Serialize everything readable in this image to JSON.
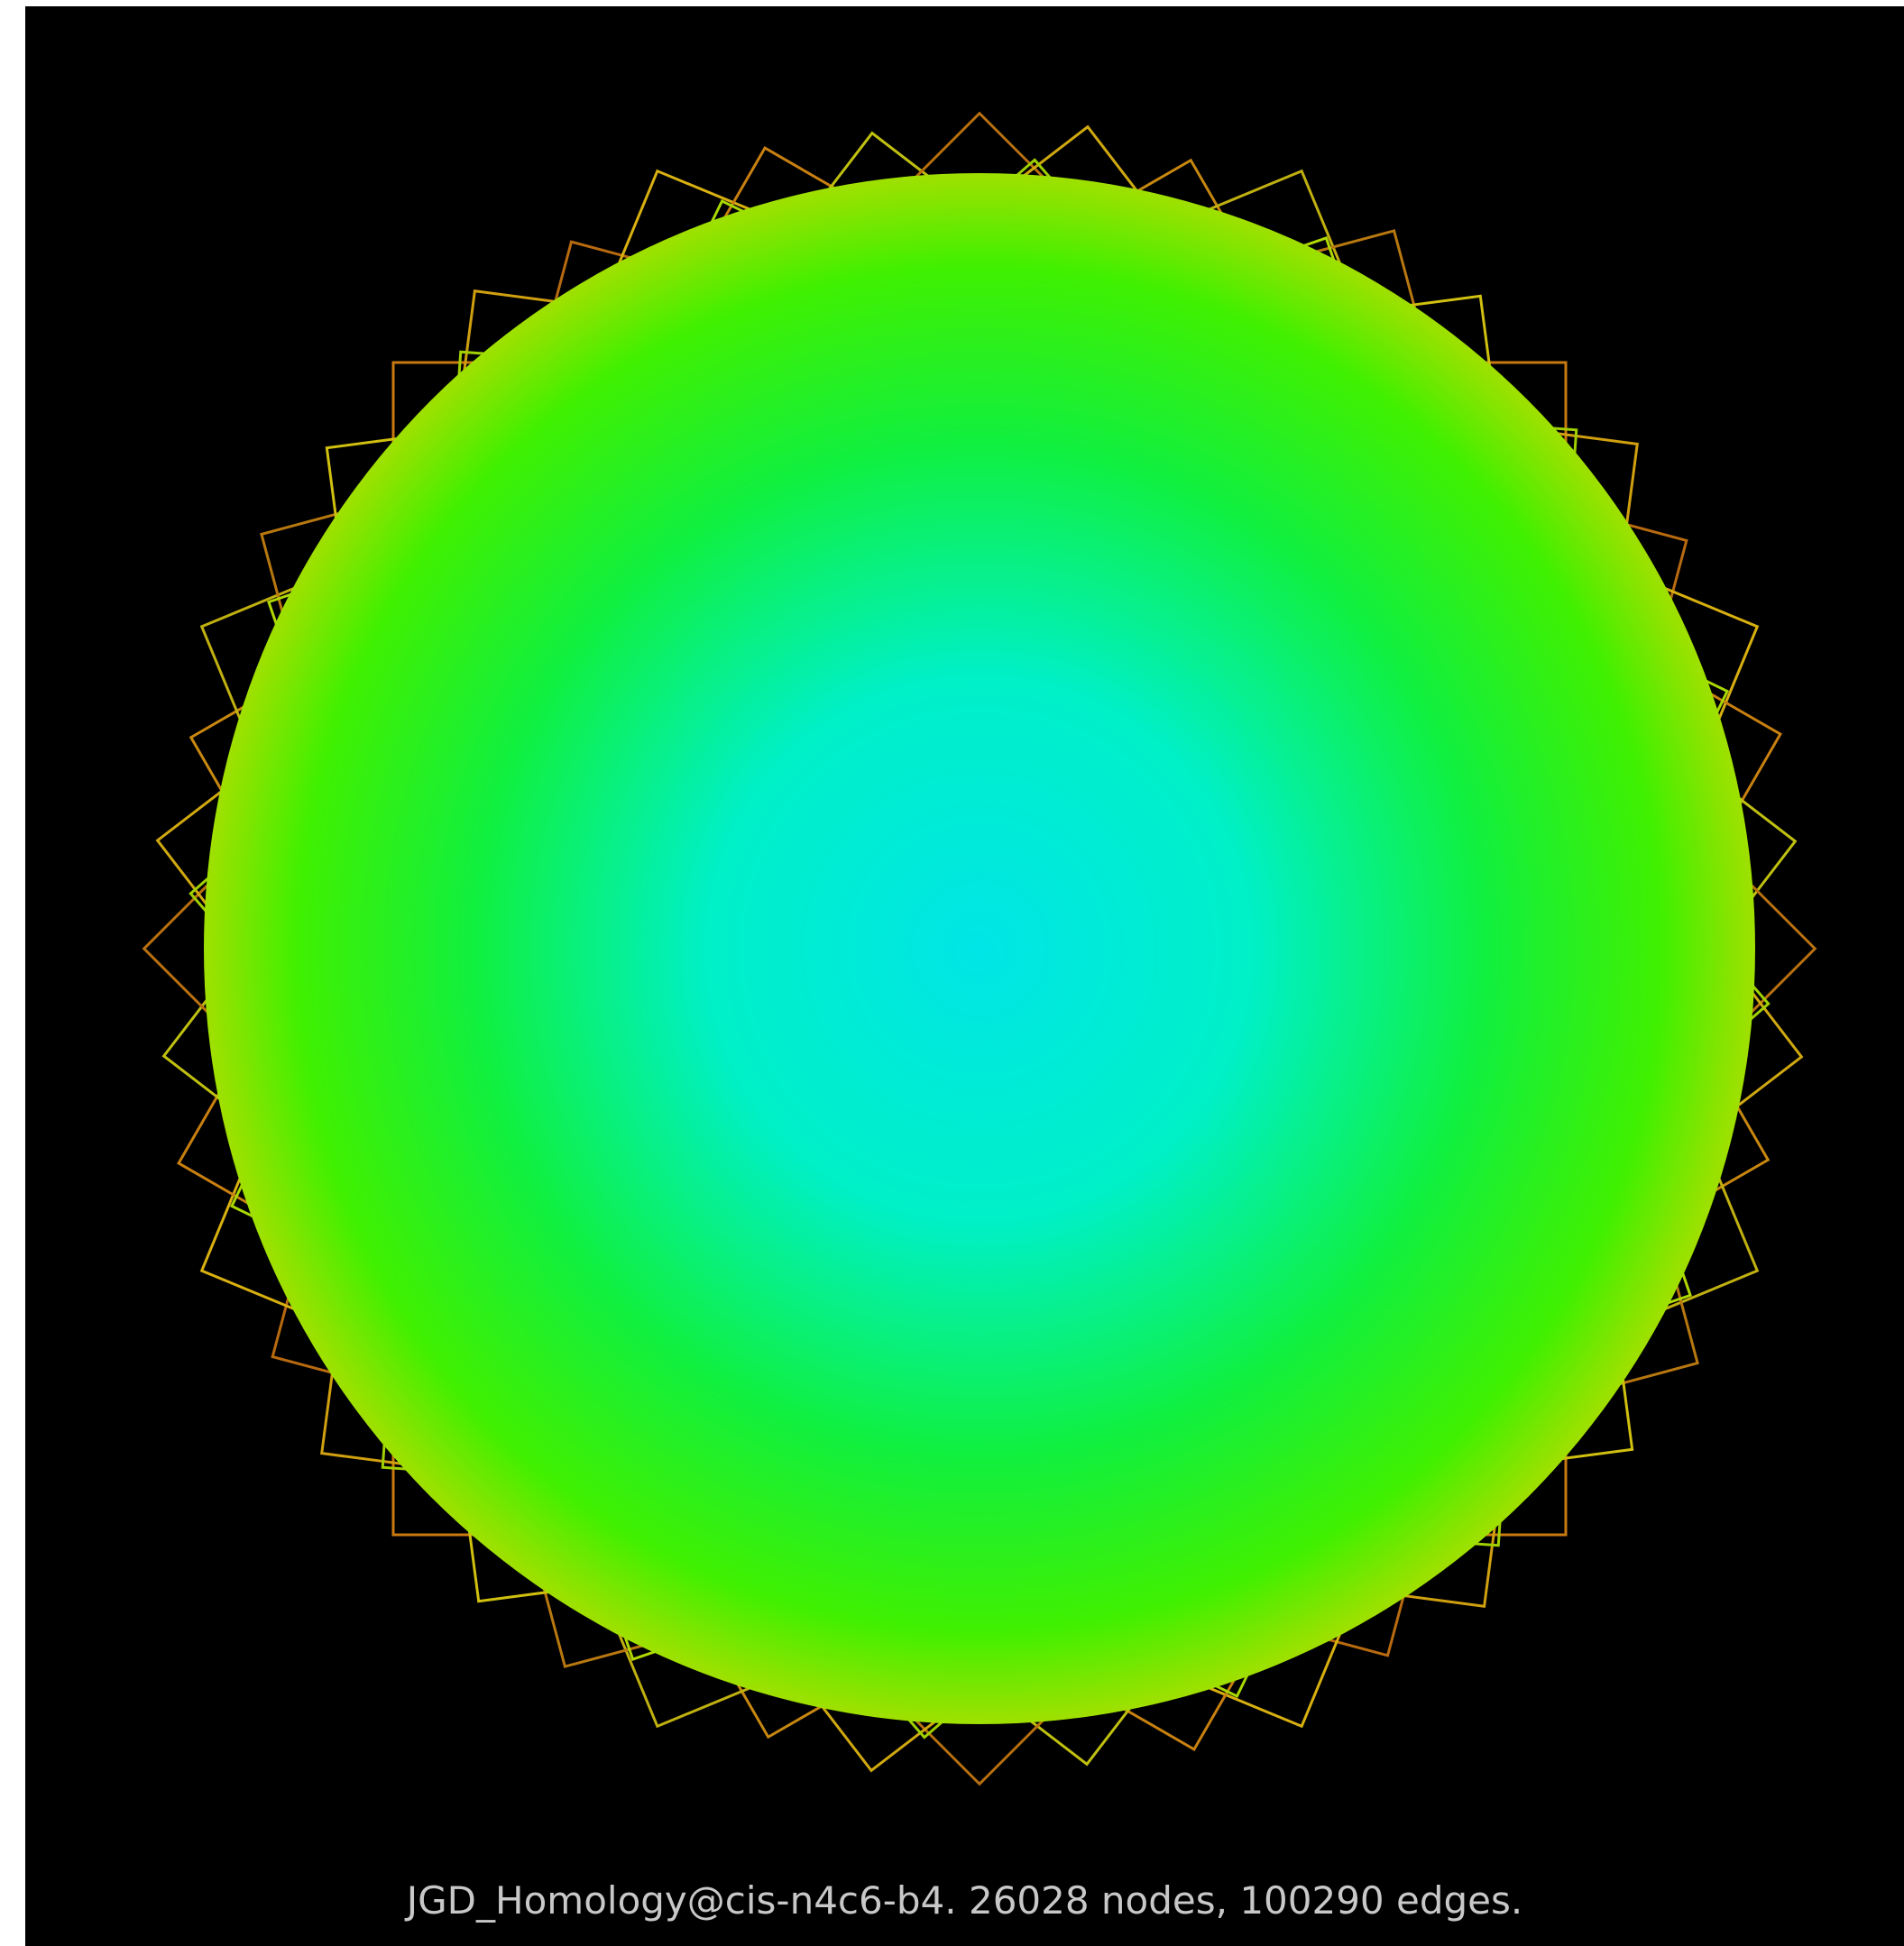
{
  "caption": "JGD_Homology@cis-n4c6-b4. 26028 nodes, 100290 edges."
}
